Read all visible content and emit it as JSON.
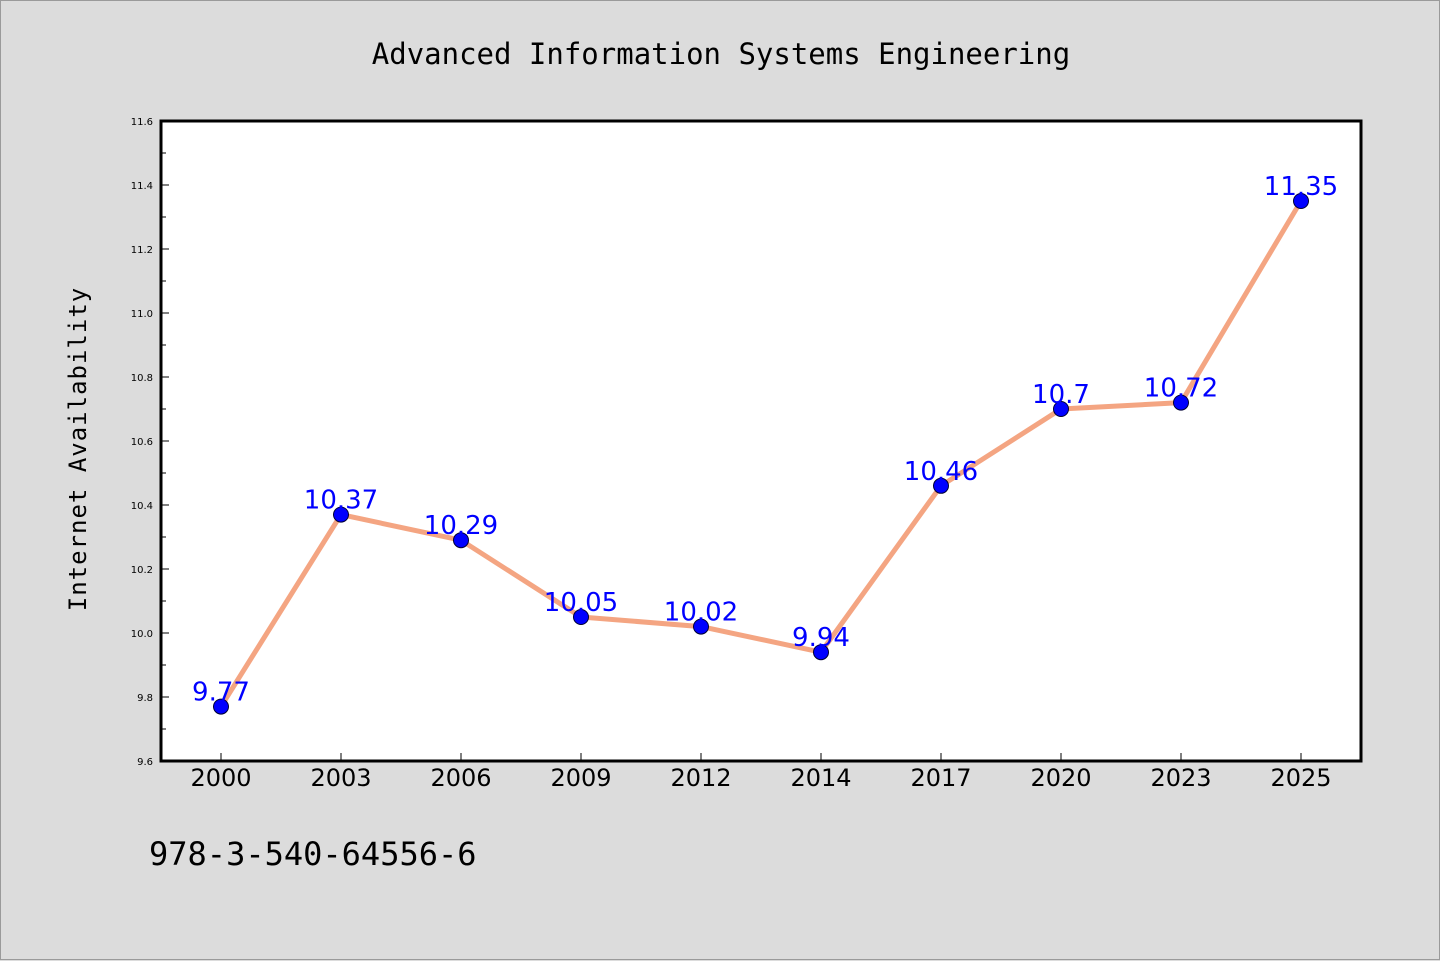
{
  "footer_text": "978-3-540-64556-6",
  "colors": {
    "background": "#dcdcdc",
    "plot_background": "#ffffff",
    "line": "#f4a582",
    "marker": "#0000ff",
    "data_label": "#0000ff"
  },
  "chart_data": {
    "type": "line",
    "title": "Advanced Information Systems Engineering",
    "xlabel": "",
    "ylabel": "Internet Availability",
    "categories": [
      "2000",
      "2003",
      "2006",
      "2009",
      "2012",
      "2014",
      "2017",
      "2020",
      "2023",
      "2025"
    ],
    "series": [
      {
        "values": [
          9.77,
          10.37,
          10.29,
          10.05,
          10.02,
          9.94,
          10.46,
          10.7,
          10.72,
          11.35
        ],
        "data_labels": [
          "9.77",
          "10.37",
          "10.29",
          "10.05",
          "10.02",
          "9.94",
          "10.46",
          "10.7",
          "10.72",
          "11.35"
        ]
      }
    ],
    "ylim": [
      9.6,
      11.6
    ],
    "yticks": [
      "9.6",
      "9.8",
      "10.0",
      "10.2",
      "10.4",
      "10.6",
      "10.8",
      "11.0",
      "11.2",
      "11.4",
      "11.6"
    ],
    "grid": false,
    "legend": "none",
    "marker": "circle"
  }
}
